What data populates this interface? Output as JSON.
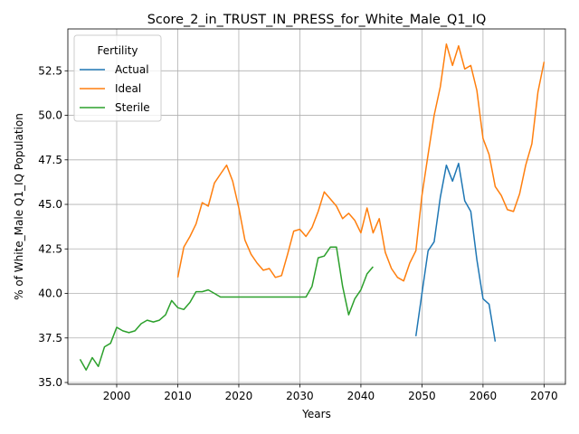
{
  "chart_data": {
    "type": "line",
    "title": "Score_2_in_TRUST_IN_PRESS_for_White_Male_Q1_IQ",
    "xlabel": "Years",
    "ylabel": "% of White_Male Q1_IQ Population",
    "xlim": [
      1992,
      2073.5
    ],
    "ylim": [
      34.9,
      54.85
    ],
    "xticks": [
      2000,
      2010,
      2020,
      2030,
      2040,
      2050,
      2060,
      2070
    ],
    "yticks": [
      35.0,
      37.5,
      40.0,
      42.5,
      45.0,
      47.5,
      50.0,
      52.5
    ],
    "ytick_labels": [
      "35.0",
      "37.5",
      "40.0",
      "42.5",
      "45.0",
      "47.5",
      "50.0",
      "52.5"
    ],
    "grid": true,
    "legend": {
      "title": "Fertility",
      "position": "top-left"
    },
    "series": [
      {
        "name": "Actual",
        "color": "#1f77b4",
        "x": [
          2049,
          2050,
          2051,
          2052,
          2053,
          2054,
          2055,
          2056,
          2057,
          2058,
          2059,
          2060,
          2061,
          2062
        ],
        "y": [
          37.6,
          40.0,
          42.4,
          42.9,
          45.4,
          47.2,
          46.3,
          47.3,
          45.2,
          44.6,
          41.9,
          39.7,
          39.4,
          37.3
        ]
      },
      {
        "name": "Ideal",
        "color": "#ff7f0e",
        "x": [
          2010,
          2011,
          2012,
          2013,
          2014,
          2015,
          2016,
          2017,
          2018,
          2019,
          2020,
          2021,
          2022,
          2023,
          2024,
          2025,
          2026,
          2027,
          2028,
          2029,
          2030,
          2031,
          2032,
          2033,
          2034,
          2035,
          2036,
          2037,
          2038,
          2039,
          2040,
          2041,
          2042,
          2043,
          2044,
          2045,
          2046,
          2047,
          2048,
          2049,
          2050,
          2051,
          2052,
          2053,
          2054,
          2055,
          2056,
          2057,
          2058,
          2059,
          2060,
          2061,
          2062,
          2063,
          2064,
          2065,
          2066,
          2067,
          2068,
          2069,
          2070
        ],
        "y": [
          40.9,
          42.6,
          43.2,
          43.9,
          45.1,
          44.9,
          46.2,
          46.7,
          47.2,
          46.3,
          44.8,
          43.0,
          42.2,
          41.7,
          41.3,
          41.4,
          40.9,
          41.0,
          42.2,
          43.5,
          43.6,
          43.2,
          43.7,
          44.6,
          45.7,
          45.3,
          44.9,
          44.2,
          44.5,
          44.1,
          43.4,
          44.8,
          43.4,
          44.2,
          42.3,
          41.4,
          40.9,
          40.7,
          41.7,
          42.4,
          45.5,
          47.8,
          50.0,
          51.6,
          54.0,
          52.8,
          53.9,
          52.6,
          52.8,
          51.4,
          48.7,
          47.8,
          46.0,
          45.5,
          44.7,
          44.6,
          45.6,
          47.2,
          48.4,
          51.3,
          53.0
        ]
      },
      {
        "name": "Sterile",
        "color": "#2ca02c",
        "x": [
          1994,
          1995,
          1996,
          1997,
          1998,
          1999,
          2000,
          2001,
          2002,
          2003,
          2004,
          2005,
          2006,
          2007,
          2008,
          2009,
          2010,
          2011,
          2012,
          2013,
          2014,
          2015,
          2016,
          2017,
          2018,
          2019,
          2020,
          2021,
          2022,
          2023,
          2024,
          2025,
          2026,
          2027,
          2028,
          2029,
          2030,
          2031,
          2032,
          2033,
          2034,
          2035,
          2036,
          2037,
          2038,
          2039,
          2040,
          2041,
          2042
        ],
        "y": [
          36.3,
          35.7,
          36.4,
          35.9,
          37.0,
          37.2,
          38.1,
          37.9,
          37.8,
          37.9,
          38.3,
          38.5,
          38.4,
          38.5,
          38.8,
          39.6,
          39.2,
          39.1,
          39.5,
          40.1,
          40.1,
          40.2,
          40.0,
          39.8,
          39.8,
          39.8,
          39.8,
          39.8,
          39.8,
          39.8,
          39.8,
          39.8,
          39.8,
          39.8,
          39.8,
          39.8,
          39.8,
          39.8,
          40.4,
          42.0,
          42.1,
          42.6,
          42.6,
          40.4,
          38.8,
          39.7,
          40.2,
          41.1,
          41.5
        ]
      }
    ]
  }
}
